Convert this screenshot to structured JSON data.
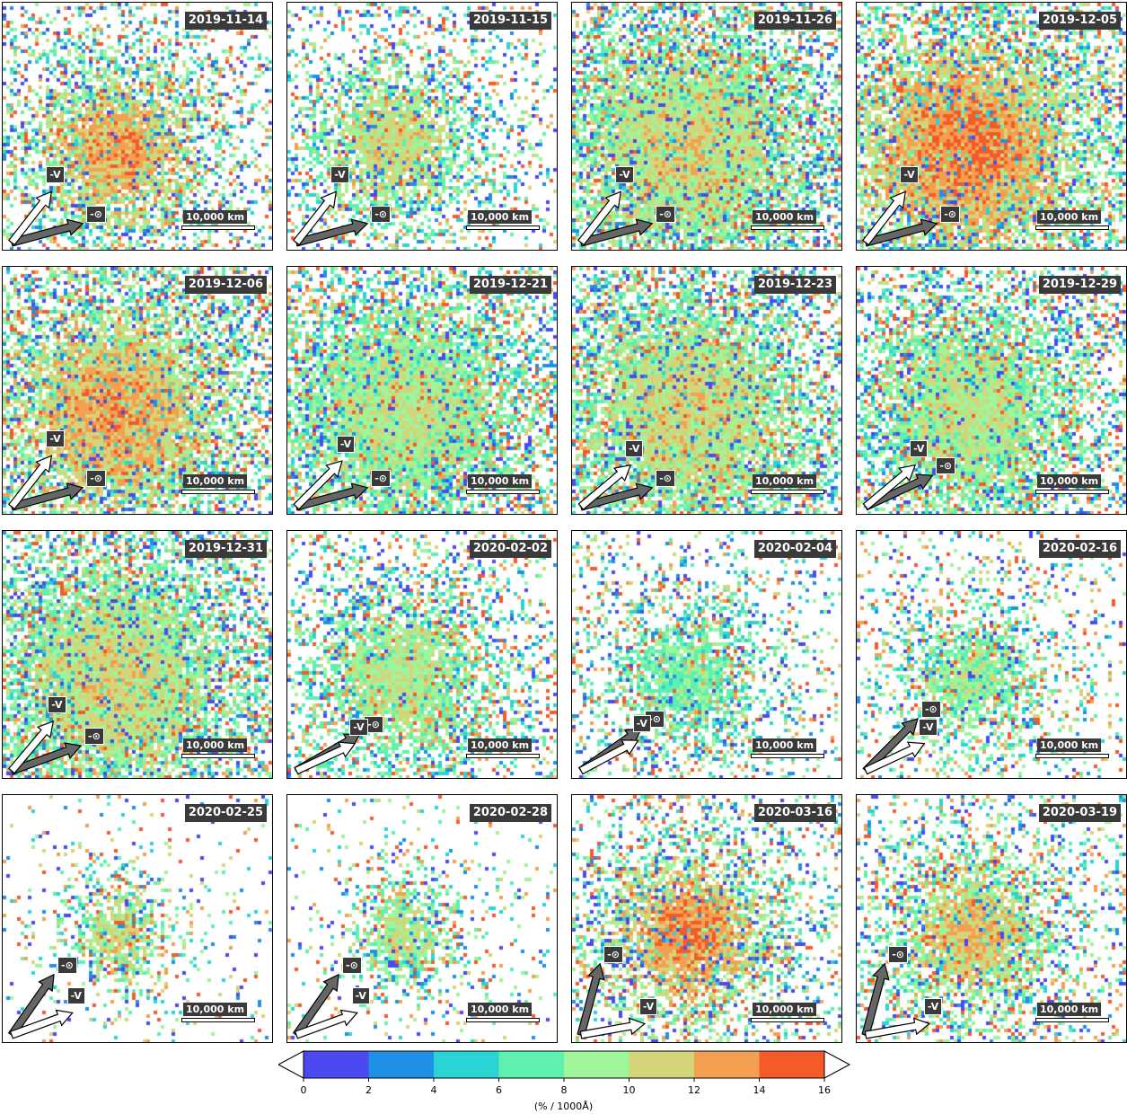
{
  "panels": [
    {
      "date": "2019-11-14",
      "scale_label": "10,000 km",
      "sun_label": "-⊙",
      "vel_label": "-V",
      "sun_angle": -15,
      "vel_angle": -52,
      "spread": 0.55,
      "fill": 0.55,
      "peak": 13,
      "center": [
        0.42,
        0.58
      ]
    },
    {
      "date": "2019-11-15",
      "scale_label": "10,000 km",
      "sun_label": "-⊙",
      "vel_label": "-V",
      "sun_angle": -15,
      "vel_angle": -52,
      "spread": 0.45,
      "fill": 0.45,
      "peak": 11,
      "center": [
        0.38,
        0.56
      ]
    },
    {
      "date": "2019-11-26",
      "scale_label": "10,000 km",
      "sun_label": "-⊙",
      "vel_label": "-V",
      "sun_angle": -15,
      "vel_angle": -52,
      "spread": 0.9,
      "fill": 0.85,
      "peak": 11,
      "center": [
        0.42,
        0.58
      ]
    },
    {
      "date": "2019-12-05",
      "scale_label": "10,000 km",
      "sun_label": "-⊙",
      "vel_label": "-V",
      "sun_angle": -15,
      "vel_angle": -52,
      "spread": 0.9,
      "fill": 0.85,
      "peak": 14,
      "center": [
        0.4,
        0.58
      ]
    },
    {
      "date": "2019-12-06",
      "scale_label": "10,000 km",
      "sun_label": "-⊙",
      "vel_label": "-V",
      "sun_angle": -15,
      "vel_angle": -52,
      "spread": 0.85,
      "fill": 0.8,
      "peak": 13,
      "center": [
        0.42,
        0.58
      ]
    },
    {
      "date": "2019-12-21",
      "scale_label": "10,000 km",
      "sun_label": "-⊙",
      "vel_label": "-V",
      "sun_angle": -15,
      "vel_angle": -45,
      "spread": 0.85,
      "fill": 0.8,
      "peak": 10,
      "center": [
        0.42,
        0.58
      ]
    },
    {
      "date": "2019-12-23",
      "scale_label": "10,000 km",
      "sun_label": "-⊙",
      "vel_label": "-V",
      "sun_angle": -15,
      "vel_angle": -40,
      "spread": 0.85,
      "fill": 0.8,
      "peak": 11,
      "center": [
        0.42,
        0.58
      ]
    },
    {
      "date": "2019-12-29",
      "scale_label": "10,000 km",
      "sun_label": "-⊙",
      "vel_label": "-V",
      "sun_angle": -25,
      "vel_angle": -40,
      "spread": 0.75,
      "fill": 0.7,
      "peak": 10,
      "center": [
        0.42,
        0.58
      ]
    },
    {
      "date": "2019-12-31",
      "scale_label": "10,000 km",
      "sun_label": "-⊙",
      "vel_label": "-V",
      "sun_angle": -20,
      "vel_angle": -50,
      "spread": 0.85,
      "fill": 0.85,
      "peak": 11,
      "center": [
        0.42,
        0.58
      ]
    },
    {
      "date": "2020-02-02",
      "scale_label": "10,000 km",
      "sun_label": "-⊙",
      "vel_label": "-V",
      "sun_angle": -30,
      "vel_angle": -25,
      "spread": 0.5,
      "fill": 0.55,
      "peak": 10,
      "center": [
        0.42,
        0.58
      ]
    },
    {
      "date": "2020-02-04",
      "scale_label": "10,000 km",
      "sun_label": "-⊙",
      "vel_label": "-V",
      "sun_angle": -35,
      "vel_angle": -28,
      "spread": 0.35,
      "fill": 0.4,
      "peak": 8,
      "center": [
        0.42,
        0.58
      ]
    },
    {
      "date": "2020-02-16",
      "scale_label": "10,000 km",
      "sun_label": "-⊙",
      "vel_label": "-V",
      "sun_angle": -45,
      "vel_angle": -25,
      "spread": 0.3,
      "fill": 0.35,
      "peak": 9,
      "center": [
        0.42,
        0.58
      ]
    },
    {
      "date": "2020-02-25",
      "scale_label": "10,000 km",
      "sun_label": "-⊙",
      "vel_label": "-V",
      "sun_angle": -55,
      "vel_angle": -20,
      "spread": 0.15,
      "fill": 0.18,
      "peak": 11,
      "center": [
        0.42,
        0.55
      ]
    },
    {
      "date": "2020-02-28",
      "scale_label": "10,000 km",
      "sun_label": "-⊙",
      "vel_label": "-V",
      "sun_angle": -55,
      "vel_angle": -20,
      "spread": 0.15,
      "fill": 0.18,
      "peak": 10,
      "center": [
        0.42,
        0.55
      ]
    },
    {
      "date": "2020-03-16",
      "scale_label": "10,000 km",
      "sun_label": "-⊙",
      "vel_label": "-V",
      "sun_angle": -75,
      "vel_angle": -10,
      "spread": 0.5,
      "fill": 0.55,
      "peak": 14,
      "center": [
        0.42,
        0.55
      ]
    },
    {
      "date": "2020-03-19",
      "scale_label": "10,000 km",
      "sun_label": "-⊙",
      "vel_label": "-V",
      "sun_angle": -75,
      "vel_angle": -10,
      "spread": 0.45,
      "fill": 0.5,
      "peak": 12,
      "center": [
        0.42,
        0.55
      ]
    }
  ],
  "colorbar": {
    "ticks": [
      "0",
      "2",
      "4",
      "6",
      "8",
      "10",
      "12",
      "14",
      "16"
    ],
    "colors": [
      "#4a4af0",
      "#1e90e6",
      "#2bd4d4",
      "#5ff0b0",
      "#9ef59a",
      "#d4d47a",
      "#f5a050",
      "#f55a2a"
    ],
    "unit_label": "(% / 1000Å)"
  },
  "chart_data": {
    "type": "heatmap",
    "description_values": {
      "dates": [
        "2019-11-14",
        "2019-11-15",
        "2019-11-26",
        "2019-12-05",
        "2019-12-06",
        "2019-12-21",
        "2019-12-23",
        "2019-12-29",
        "2019-12-31",
        "2020-02-02",
        "2020-02-04",
        "2020-02-16",
        "2020-02-25",
        "2020-02-28",
        "2020-03-16",
        "2020-03-19"
      ],
      "colorbar_range": [
        0,
        16
      ],
      "colorbar_ticks": [
        0,
        2,
        4,
        6,
        8,
        10,
        12,
        14,
        16
      ],
      "unit": "(% / 1000Å)",
      "scale_bar": "10,000 km"
    }
  }
}
